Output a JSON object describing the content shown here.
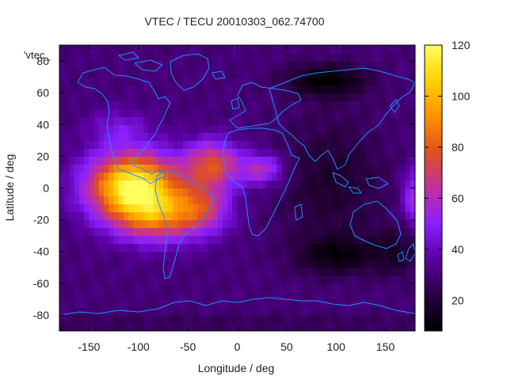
{
  "chart_data": {
    "type": "heatmap",
    "title": "VTEC / TECU 20010303_062.74700",
    "xlabel": "Longitude / deg",
    "ylabel": "Latitude / deg",
    "series_key_label": "'vtec_",
    "xlim": [
      -180,
      180
    ],
    "ylim": [
      -90,
      90
    ],
    "x_ticks": [
      -150,
      -100,
      -50,
      0,
      50,
      100,
      150
    ],
    "y_ticks": [
      -80,
      -60,
      -40,
      -20,
      0,
      20,
      40,
      60,
      80
    ],
    "colorbar": {
      "range": [
        8,
        120
      ],
      "ticks": [
        20,
        40,
        60,
        80,
        100,
        120
      ],
      "colormap": [
        "#000000",
        "#2a0040",
        "#5a00a0",
        "#8a20ff",
        "#c030a0",
        "#e05020",
        "#ff9000",
        "#ffd000",
        "#ffff60"
      ]
    },
    "grid_spacing_deg": 5,
    "background_tec": 30,
    "tec_features": [
      {
        "name": "main_equatorial_peak",
        "lon": -105,
        "lat": 2,
        "peak": 88,
        "lon_spread": 45,
        "lat_spread": 20
      },
      {
        "name": "secondary_peak_south",
        "lon": -80,
        "lat": -18,
        "peak": 45,
        "lon_spread": 45,
        "lat_spread": 16
      },
      {
        "name": "atlantic_band_north",
        "lon": -25,
        "lat": 15,
        "peak": 45,
        "lon_spread": 28,
        "lat_spread": 15
      },
      {
        "name": "atlantic_band_south",
        "lon": -35,
        "lat": -12,
        "peak": 30,
        "lon_spread": 28,
        "lat_spread": 15
      },
      {
        "name": "africa_west_band",
        "lon": 25,
        "lat": 12,
        "peak": 30,
        "lon_spread": 22,
        "lat_spread": 10
      },
      {
        "name": "north_america_extension",
        "lon": -120,
        "lat": 38,
        "peak": 14,
        "lon_spread": 30,
        "lat_spread": 12
      },
      {
        "name": "eastern_edge_peak",
        "lon": 182,
        "lat": -5,
        "peak": 30,
        "lon_spread": 14,
        "lat_spread": 18
      },
      {
        "name": "asia_night_trough",
        "lon": 95,
        "lat": 5,
        "peak": -12,
        "lon_spread": 55,
        "lat_spread": 40
      },
      {
        "name": "siberia_low",
        "lon": 90,
        "lat": 68,
        "peak": -22,
        "lon_spread": 40,
        "lat_spread": 10
      },
      {
        "name": "south_indian_low",
        "lon": 100,
        "lat": -42,
        "peak": -18,
        "lon_spread": 40,
        "lat_spread": 12
      },
      {
        "name": "south_pacific_low",
        "lon": 160,
        "lat": -40,
        "peak": -12,
        "lon_spread": 25,
        "lat_spread": 15
      },
      {
        "name": "antarctic_low",
        "lon": 0,
        "lat": -85,
        "peak": -5,
        "lon_spread": 400,
        "lat_spread": 6
      }
    ]
  }
}
